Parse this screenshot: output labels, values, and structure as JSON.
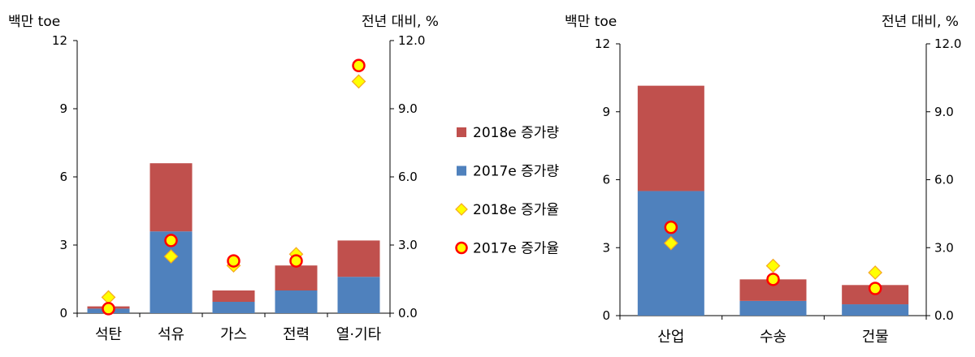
{
  "legend": [
    {
      "key": "inc2018",
      "label": "2018e 증가량",
      "kind": "bar",
      "color": "#C0504D"
    },
    {
      "key": "inc2017",
      "label": "2017e 증가량",
      "kind": "bar",
      "color": "#4F81BD"
    },
    {
      "key": "rate2018",
      "label": "2018e 증가율",
      "kind": "diamond",
      "color": "#FFFF00",
      "stroke": "#F5A623"
    },
    {
      "key": "rate2017",
      "label": "2017e 증가율",
      "kind": "circle",
      "color": "#FFFF00",
      "stroke": "#FF0000"
    }
  ],
  "chart_data": [
    {
      "type": "bar",
      "stacked": true,
      "ylabel": "백만 toe",
      "y2label": "전년 대비, %",
      "ylim": [
        0,
        12
      ],
      "y2lim": [
        0,
        12
      ],
      "yticks": [
        "0",
        "3",
        "6",
        "9",
        "12"
      ],
      "y2ticks": [
        "0.0",
        "3.0",
        "6.0",
        "9.0",
        "12.0"
      ],
      "categories": [
        "석탄",
        "석유",
        "가스",
        "전력",
        "열·기타"
      ],
      "series": [
        {
          "name": "2017e 증가량",
          "values": [
            0.2,
            3.6,
            0.5,
            1.0,
            1.6
          ]
        },
        {
          "name": "2018e 증가량",
          "values": [
            0.1,
            3.0,
            0.5,
            1.1,
            1.6
          ]
        }
      ],
      "rates": [
        {
          "name": "2018e 증가율",
          "values": [
            0.7,
            2.5,
            2.1,
            2.6,
            10.2
          ]
        },
        {
          "name": "2017e 증가율",
          "values": [
            0.2,
            3.2,
            2.3,
            2.3,
            10.9
          ]
        }
      ]
    },
    {
      "type": "bar",
      "stacked": true,
      "ylabel": "백만 toe",
      "y2label": "전년 대비, %",
      "ylim": [
        0,
        12
      ],
      "y2lim": [
        0,
        12
      ],
      "yticks": [
        "0",
        "3",
        "6",
        "9",
        "12"
      ],
      "y2ticks": [
        "0.0",
        "3.0",
        "6.0",
        "9.0",
        "12.0"
      ],
      "categories": [
        "산업",
        "수송",
        "건물"
      ],
      "series": [
        {
          "name": "2017e 증가량",
          "values": [
            5.5,
            0.65,
            0.5
          ]
        },
        {
          "name": "2018e 증가량",
          "values": [
            4.65,
            0.95,
            0.85
          ]
        }
      ],
      "rates": [
        {
          "name": "2018e 증가율",
          "values": [
            3.2,
            2.2,
            1.9
          ]
        },
        {
          "name": "2017e 증가율",
          "values": [
            3.9,
            1.6,
            1.2
          ]
        }
      ]
    }
  ]
}
